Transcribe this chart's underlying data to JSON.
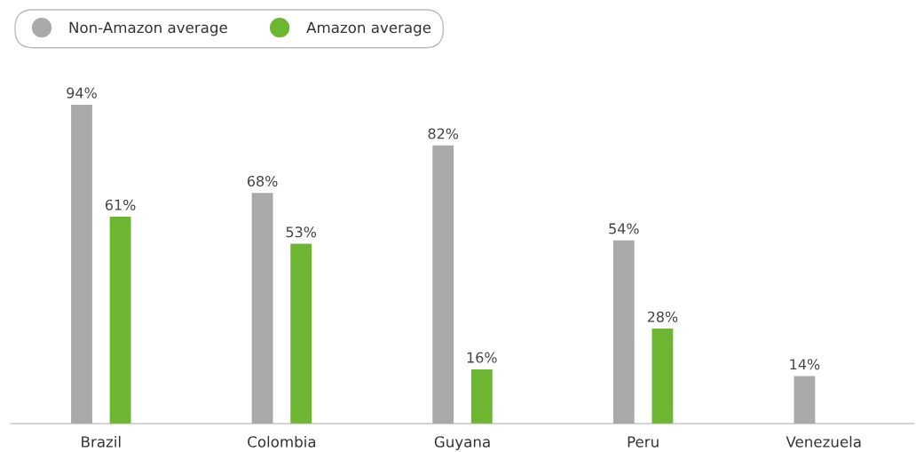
{
  "chart_data": {
    "type": "bar",
    "categories": [
      "Brazil",
      "Colombia",
      "Guyana",
      "Peru",
      "Venezuela"
    ],
    "series": [
      {
        "name": "Non-Amazon average",
        "color": "#a9a9a9",
        "values": [
          94,
          68,
          82,
          54,
          14
        ],
        "value_labels": [
          "94%",
          "68%",
          "82%",
          "54%",
          "14%"
        ]
      },
      {
        "name": "Amazon average",
        "color": "#6db632",
        "values": [
          61,
          53,
          16,
          28,
          null
        ],
        "value_labels": [
          "61%",
          "53%",
          "16%",
          "28%",
          null
        ]
      }
    ],
    "legend": "top left",
    "grid": false
  }
}
